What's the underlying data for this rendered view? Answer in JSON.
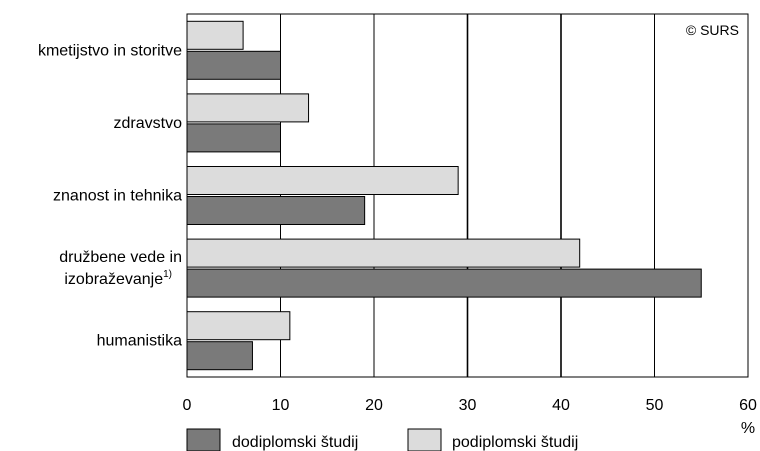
{
  "chart_data": {
    "type": "bar",
    "orientation": "horizontal",
    "categories": [
      "kmetijstvo in storitve",
      "zdravstvo",
      "znanost in tehnika",
      "družbene vede in izobraževanje",
      "humanistika"
    ],
    "category_lines": [
      [
        "kmetijstvo in storitve"
      ],
      [
        "zdravstvo"
      ],
      [
        "znanost in tehnika"
      ],
      [
        "družbene vede in",
        "izobraževanje"
      ],
      [
        "humanistika"
      ]
    ],
    "category_superscripts": [
      "",
      "",
      "",
      "1)",
      ""
    ],
    "series": [
      {
        "name": "podiplomski študij",
        "color": "#dcdcdc",
        "values": [
          6,
          13,
          29,
          42,
          11
        ]
      },
      {
        "name": "dodiplomski študij",
        "color": "#7a7a7a",
        "values": [
          10,
          10,
          19,
          55,
          7
        ]
      }
    ],
    "xlim": [
      0,
      60
    ],
    "ticks": [
      0,
      10,
      20,
      30,
      40,
      50,
      60
    ],
    "xlabel": "%",
    "grid": true,
    "legend": {
      "position": "bottom",
      "order": [
        "dodiplomski študij",
        "podiplomski študij"
      ]
    },
    "copyright": "© SURS"
  }
}
